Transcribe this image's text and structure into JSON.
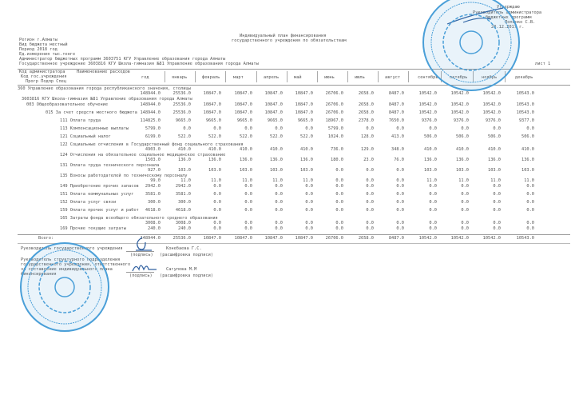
{
  "approval": {
    "line1": "Утверждаю",
    "line2": "Руководитель администратора",
    "line3": "бюджетных программ",
    "signer": "Лопенко С.В.",
    "date": "20.12.2017 г."
  },
  "title": {
    "line1": "Индивидуальный план финансирования",
    "line2": "государственного учреждения  по обязательствам"
  },
  "meta": {
    "region": "Регион г.Алматы",
    "budget_type": "Вид бюджета местный",
    "period": "Период      2018 год",
    "unit": "Ед.измерения тыс.тенге",
    "admin": "Администратор бюджетных программ  3603751 КГУ Управление образования города Алматы",
    "institution": "Государственное учреждение 3603816 КГУ Школа-гимназия №81 Управление образования города Алматы"
  },
  "sheet": "лист 1",
  "table": {
    "header_codes": [
      "Код администратора",
      "Код гос.учреждения",
      "Прогр Подпр Спец"
    ],
    "header_name": "Наименование расходов",
    "columns": [
      "год",
      "январь",
      "февраль",
      "март",
      "апрель",
      "май",
      "июнь",
      "июль",
      "август",
      "сентябрь",
      "октябрь",
      "ноябрь",
      "декабрь"
    ],
    "rows": [
      {
        "name": "360 Управление образования города республиканского значения, столицы",
        "values": [
          "148944.0",
          "25536.0",
          "10847.0",
          "10847.0",
          "10847.0",
          "10847.0",
          "26706.0",
          "2658.0",
          "8487.0",
          "10542.0",
          "10542.0",
          "10542.0",
          "10543.0"
        ]
      },
      {
        "name": "3603816 КГУ Школа-гимназия №81 Управление образования города Алматы",
        "values": []
      },
      {
        "name": "003 Общеобразовательное обучение",
        "values": [
          "148944.0",
          "25536.0",
          "10847.0",
          "10847.0",
          "10847.0",
          "10847.0",
          "26706.0",
          "2658.0",
          "8487.0",
          "10542.0",
          "10542.0",
          "10542.0",
          "10543.0"
        ]
      },
      {
        "name": "015 За счет средств местного бюджета",
        "values": [
          "148944.0",
          "25536.0",
          "10847.0",
          "10847.0",
          "10847.0",
          "10847.0",
          "26706.0",
          "2658.0",
          "8487.0",
          "10542.0",
          "10542.0",
          "10542.0",
          "10543.0"
        ]
      },
      {
        "name": "111 Оплата труда",
        "values": [
          "114825.0",
          "9665.0",
          "9665.0",
          "9665.0",
          "9665.0",
          "9665.0",
          "18967.0",
          "2378.0",
          "7650.0",
          "9376.0",
          "9376.0",
          "9376.0",
          "9377.0"
        ]
      },
      {
        "name": "113 Компенсационные выплаты",
        "values": [
          "5799.0",
          "0.0",
          "0.0",
          "0.0",
          "0.0",
          "0.0",
          "5799.0",
          "0.0",
          "0.0",
          "0.0",
          "0.0",
          "0.0",
          "0.0"
        ]
      },
      {
        "name": "121 Социальный налог",
        "values": [
          "6199.0",
          "522.0",
          "522.0",
          "522.0",
          "522.0",
          "522.0",
          "1024.0",
          "128.0",
          "413.0",
          "506.0",
          "506.0",
          "506.0",
          "506.0"
        ]
      },
      {
        "name": "122 Социальные отчисления в Государственный фонд социального страхования",
        "values": [
          "4903.0",
          "410.0",
          "410.0",
          "410.0",
          "410.0",
          "410.0",
          "736.0",
          "129.0",
          "348.0",
          "410.0",
          "410.0",
          "410.0",
          "410.0"
        ]
      },
      {
        "name": "124 Отчисления на обязательное социальное медицинское страхование",
        "values": [
          "1503.0",
          "136.0",
          "136.0",
          "136.0",
          "136.0",
          "136.0",
          "180.0",
          "23.0",
          "76.0",
          "136.0",
          "136.0",
          "136.0",
          "136.0"
        ]
      },
      {
        "name": "131 Оплата труда технического персонала",
        "values": [
          "927.0",
          "103.0",
          "103.0",
          "103.0",
          "103.0",
          "103.0",
          "0.0",
          "0.0",
          "0.0",
          "103.0",
          "103.0",
          "103.0",
          "103.0"
        ]
      },
      {
        "name": "135 Взносы работодателей по техническому персоналу",
        "values": [
          "99.0",
          "11.0",
          "11.0",
          "11.0",
          "11.0",
          "11.0",
          "0.0",
          "0.0",
          "0.0",
          "11.0",
          "11.0",
          "11.0",
          "11.0"
        ]
      },
      {
        "name": "149 Приобретение прочих запасов",
        "values": [
          "2942.0",
          "2942.0",
          "0.0",
          "0.0",
          "0.0",
          "0.0",
          "0.0",
          "0.0",
          "0.0",
          "0.0",
          "0.0",
          "0.0",
          "0.0"
        ]
      },
      {
        "name": "151 Оплата коммунальных услуг",
        "values": [
          "3581.0",
          "3581.0",
          "0.0",
          "0.0",
          "0.0",
          "0.0",
          "0.0",
          "0.0",
          "0.0",
          "0.0",
          "0.0",
          "0.0",
          "0.0"
        ]
      },
      {
        "name": "152 Оплата услуг связи",
        "values": [
          "300.0",
          "300.0",
          "0.0",
          "0.0",
          "0.0",
          "0.0",
          "0.0",
          "0.0",
          "0.0",
          "0.0",
          "0.0",
          "0.0",
          "0.0"
        ]
      },
      {
        "name": "159 Оплата прочих услуг и работ",
        "values": [
          "4618.0",
          "4618.0",
          "0.0",
          "0.0",
          "0.0",
          "0.0",
          "0.0",
          "0.0",
          "0.0",
          "0.0",
          "0.0",
          "0.0",
          "0.0"
        ]
      },
      {
        "name": "165 Затраты фонда всеобщего обязательного среднего образования",
        "values": [
          "3008.0",
          "3008.0",
          "0.0",
          "0.0",
          "0.0",
          "0.0",
          "0.0",
          "0.0",
          "0.0",
          "0.0",
          "0.0",
          "0.0",
          "0.0"
        ]
      },
      {
        "name": "169 Прочие текущие затраты",
        "values": [
          "240.0",
          "240.0",
          "0.0",
          "0.0",
          "0.0",
          "0.0",
          "0.0",
          "0.0",
          "0.0",
          "0.0",
          "0.0",
          "0.0",
          "0.0"
        ]
      }
    ],
    "total": {
      "name": "Всего:",
      "values": [
        "148944.0",
        "25536.0",
        "10847.0",
        "10847.0",
        "10847.0",
        "10847.0",
        "26706.0",
        "2658.0",
        "8487.0",
        "10542.0",
        "10542.0",
        "10542.0",
        "10543.0"
      ]
    }
  },
  "signatures": {
    "head_label": "Руководитель государственного учреждения",
    "head_sign": "(подпись)",
    "head_name": "Конебаева Г.С.",
    "head_decode": "(расшифровка подписи)",
    "resp_label": [
      "Руководитель структурного подразделения",
      "государственного учреждения, ответственного",
      "за составление индивидуального плана",
      "финансирования"
    ],
    "resp_sign": "(подпись)",
    "resp_name": "Сагулова М.М",
    "resp_decode": "(расшифровка подписи)"
  },
  "colors": {
    "stamp": "#4a9fd8",
    "ink": "#555555"
  }
}
